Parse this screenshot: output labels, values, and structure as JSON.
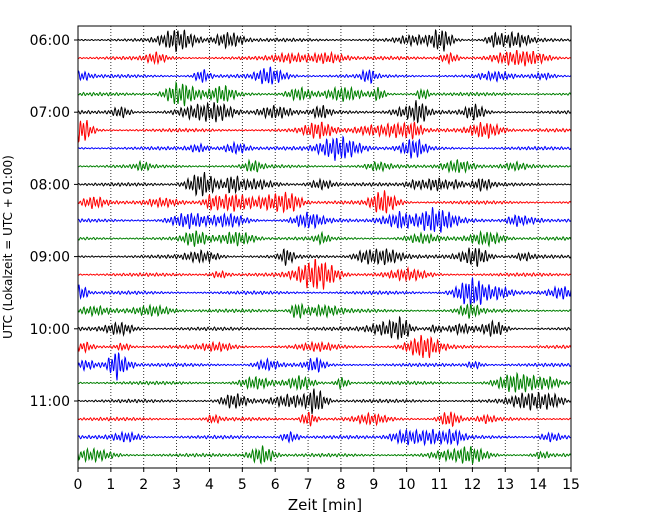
{
  "chart_data": {
    "type": "line",
    "title": "",
    "xlabel": "Zeit  [min]",
    "ylabel": "UTC (Lokalzeit = UTC + 01:00)",
    "xlim": [
      0,
      15
    ],
    "x_ticks": [
      "0",
      "1",
      "2",
      "3",
      "4",
      "5",
      "6",
      "7",
      "8",
      "9",
      "10",
      "11",
      "12",
      "13",
      "14",
      "15"
    ],
    "row_count": 24,
    "row_colors": [
      "#000000",
      "#ff0000",
      "#0000ff",
      "#008000"
    ],
    "y_ticks": [
      {
        "label": "06:00",
        "row": 0
      },
      {
        "label": "07:00",
        "row": 4
      },
      {
        "label": "08:00",
        "row": 8
      },
      {
        "label": "09:00",
        "row": 12
      },
      {
        "label": "10:00",
        "row": 16
      },
      {
        "label": "11:00",
        "row": 20
      }
    ],
    "grid": "vertical dotted lines at each minute",
    "description_series": "24 seismogram traces, one per 15-minute interval from 06:00 to 11:45 UTC, colors cycling black, red, blue, green"
  }
}
